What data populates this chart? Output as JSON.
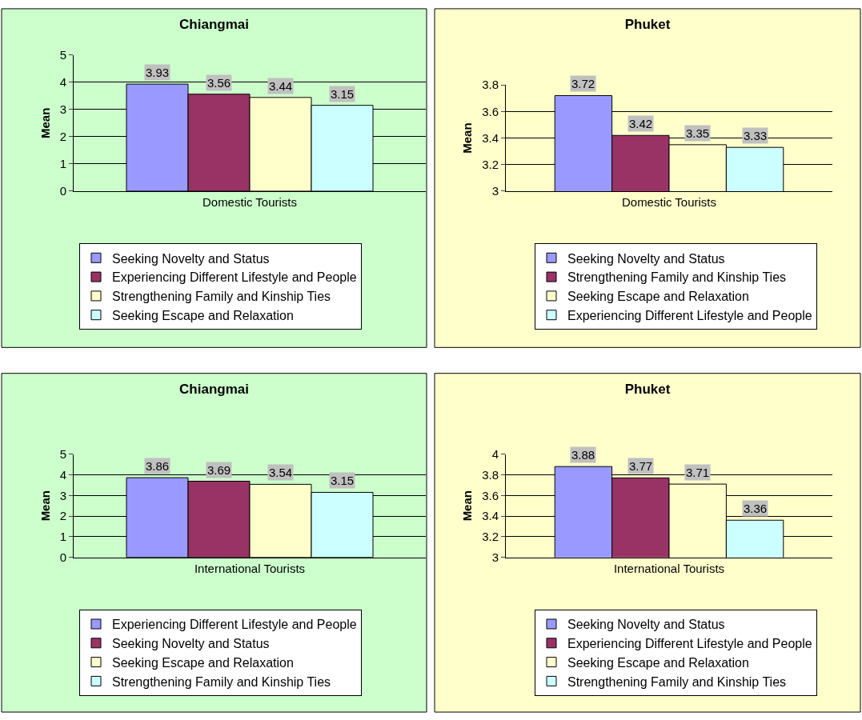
{
  "chart_data": [
    {
      "type": "bar",
      "title": "Chiangmai",
      "ylabel": "Mean",
      "categories": [
        "Domestic Tourists"
      ],
      "ylim": [
        0,
        5
      ],
      "yticks": [
        0,
        1,
        2,
        3,
        4,
        5
      ],
      "grid": "y",
      "legend": "bottom",
      "data_labels": true,
      "series": [
        {
          "name": "Seeking Novelty and Status",
          "color": "#9999ff",
          "values": [
            3.93
          ]
        },
        {
          "name": "Experiencing Different Lifestyle and People",
          "color": "#993366",
          "values": [
            3.56
          ]
        },
        {
          "name": "Strengthening Family and Kinship Ties",
          "color": "#ffffcc",
          "values": [
            3.44
          ]
        },
        {
          "name": "Seeking Escape and Relaxation",
          "color": "#ccffff",
          "values": [
            3.15
          ]
        }
      ]
    },
    {
      "type": "bar",
      "title": "Phuket",
      "ylabel": "Mean",
      "categories": [
        "Domestic Tourists"
      ],
      "ylim": [
        3,
        3.8
      ],
      "yticks": [
        3,
        3.2,
        3.4,
        3.6,
        3.8
      ],
      "grid": "y",
      "legend": "bottom",
      "data_labels": true,
      "series": [
        {
          "name": "Seeking Novelty and Status",
          "color": "#9999ff",
          "values": [
            3.72
          ]
        },
        {
          "name": "Strengthening Family and Kinship Ties",
          "color": "#993366",
          "values": [
            3.42
          ]
        },
        {
          "name": "Seeking Escape and Relaxation",
          "color": "#ffffcc",
          "values": [
            3.35
          ]
        },
        {
          "name": "Experiencing Different Lifestyle and People",
          "color": "#ccffff",
          "values": [
            3.33
          ]
        }
      ]
    },
    {
      "type": "bar",
      "title": "Chiangmai",
      "ylabel": "Mean",
      "categories": [
        "International Tourists"
      ],
      "ylim": [
        0,
        5
      ],
      "yticks": [
        0,
        1,
        2,
        3,
        4,
        5
      ],
      "grid": "y",
      "legend": "bottom",
      "data_labels": true,
      "series": [
        {
          "name": "Experiencing Different Lifestyle and People",
          "color": "#9999ff",
          "values": [
            3.86
          ]
        },
        {
          "name": "Seeking Novelty and Status",
          "color": "#993366",
          "values": [
            3.69
          ]
        },
        {
          "name": "Seeking Escape and Relaxation",
          "color": "#ffffcc",
          "values": [
            3.54
          ]
        },
        {
          "name": "Strengthening Family and Kinship Ties",
          "color": "#ccffff",
          "values": [
            3.15
          ]
        }
      ]
    },
    {
      "type": "bar",
      "title": "Phuket",
      "ylabel": "Mean",
      "categories": [
        "International Tourists"
      ],
      "ylim": [
        3,
        4
      ],
      "yticks": [
        3,
        3.2,
        3.4,
        3.6,
        3.8,
        4
      ],
      "grid": "y",
      "legend": "bottom",
      "data_labels": true,
      "series": [
        {
          "name": "Seeking Novelty and Status",
          "color": "#9999ff",
          "values": [
            3.88
          ]
        },
        {
          "name": "Experiencing Different Lifestyle and People",
          "color": "#993366",
          "values": [
            3.77
          ]
        },
        {
          "name": "Seeking Escape and Relaxation",
          "color": "#ffffcc",
          "values": [
            3.71
          ]
        },
        {
          "name": "Strengthening Family and Kinship Ties",
          "color": "#ccffff",
          "values": [
            3.36
          ]
        }
      ]
    }
  ]
}
